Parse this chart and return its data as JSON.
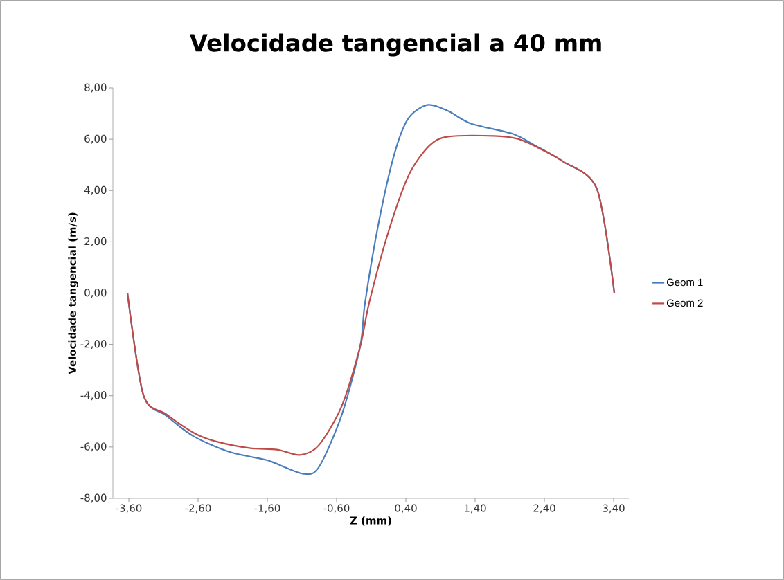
{
  "chart_data": {
    "type": "line",
    "title": "Velocidade tangencial a 40 mm",
    "xlabel": "Z (mm)",
    "ylabel": "Velocidade tangencial (m/s)",
    "xlim": [
      -3.83,
      3.62
    ],
    "ylim": [
      -8,
      8
    ],
    "xticks": [
      {
        "value": -3.6,
        "label": "-3,60"
      },
      {
        "value": -2.6,
        "label": "-2,60"
      },
      {
        "value": -1.6,
        "label": "-1,60"
      },
      {
        "value": -0.6,
        "label": "-0,60"
      },
      {
        "value": 0.4,
        "label": "0,40"
      },
      {
        "value": 1.4,
        "label": "1,40"
      },
      {
        "value": 2.4,
        "label": "2,40"
      },
      {
        "value": 3.4,
        "label": "3,40"
      }
    ],
    "yticks": [
      {
        "value": -8,
        "label": "-8,00"
      },
      {
        "value": -6,
        "label": "-6,00"
      },
      {
        "value": -4,
        "label": "-4,00"
      },
      {
        "value": -2,
        "label": "-2,00"
      },
      {
        "value": 0,
        "label": "0,00"
      },
      {
        "value": 2,
        "label": "2,00"
      },
      {
        "value": 4,
        "label": "4,00"
      },
      {
        "value": 6,
        "label": "6,00"
      },
      {
        "value": 8,
        "label": "8,00"
      }
    ],
    "grid": false,
    "legend": "right",
    "marker": "none",
    "line_style": "solid",
    "series": [
      {
        "name": "Geom 1",
        "color": "#4a7ebb",
        "x": [
          -3.62,
          -3.39,
          -3.06,
          -2.66,
          -2.16,
          -1.66,
          -1.53,
          -1.09,
          -0.86,
          -0.53,
          -0.26,
          -0.19,
          0.01,
          0.24,
          0.44,
          0.72,
          1.01,
          1.34,
          1.94,
          2.27,
          2.67,
          3.16,
          3.41
        ],
        "values": [
          0,
          -3.97,
          -4.78,
          -5.59,
          -6.18,
          -6.48,
          -6.58,
          -7.04,
          -6.8,
          -4.78,
          -2.08,
          -0.38,
          2.78,
          5.48,
          6.83,
          7.34,
          7.1,
          6.61,
          6.21,
          5.75,
          5.13,
          4.05,
          0
        ]
      },
      {
        "name": "Geom 2",
        "color": "#be4b48",
        "x": [
          -3.62,
          -3.39,
          -3.06,
          -2.66,
          -2.36,
          -1.86,
          -1.46,
          -1.13,
          -0.86,
          -0.53,
          -0.26,
          -0.13,
          0.14,
          0.44,
          0.74,
          1.01,
          1.67,
          2.01,
          2.27,
          2.67,
          3.16,
          3.41
        ],
        "values": [
          0,
          -3.97,
          -4.72,
          -5.45,
          -5.77,
          -6.04,
          -6.1,
          -6.31,
          -5.94,
          -4.43,
          -2.08,
          -0.38,
          2.32,
          4.59,
          5.75,
          6.1,
          6.13,
          6.02,
          5.72,
          5.13,
          4.05,
          0
        ]
      }
    ]
  }
}
